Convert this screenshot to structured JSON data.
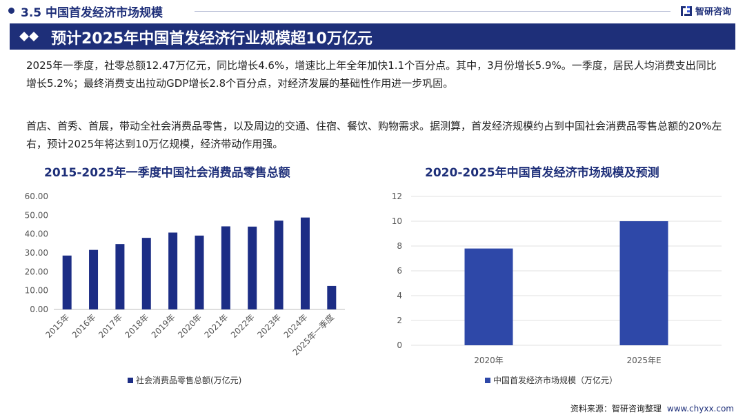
{
  "header": {
    "section_title": "3.5 中国首发经济市场规模",
    "brand_name": "智研咨询",
    "banner_title": "预计2025年中国首发经济行业规模超10万亿元"
  },
  "paragraphs": [
    "2025年一季度，社零总额12.47万亿元，同比增长4.6%，增速比上年全年加快1.1个百分点。其中，3月份增长5.9%。一季度，居民人均消费支出同比增长5.2%；最终消费支出拉动GDP增长2.8个百分点，对经济发展的基础性作用进一步巩固。",
    "首店、首秀、首展，带动全社会消费品零售，以及周边的交通、住宿、餐饮、购物需求。据测算，首发经济规模约占到中国社会消费品零售总额的20%左右，预计2025年将达到10万亿规模，经济带动作用强。"
  ],
  "colors": {
    "navy": "#1e2f79",
    "bar_left": "#1c2d85",
    "bar_right": "#2e48a8",
    "grid": "#e0e0e0"
  },
  "chart_data": [
    {
      "type": "bar",
      "title": "2015-2025年一季度中国社会消费品零售总额",
      "categories": [
        "2015年",
        "2016年",
        "2017年",
        "2018年",
        "2019年",
        "2020年",
        "2021年",
        "2022年",
        "2023年",
        "2024年",
        "2025年一季度"
      ],
      "series": [
        {
          "name": "社会消费品零售总额(万亿元)",
          "values": [
            28.6,
            31.6,
            34.7,
            38.0,
            40.8,
            39.2,
            44.1,
            43.97,
            47.15,
            48.79,
            12.47
          ]
        }
      ],
      "ylim": [
        0,
        60
      ],
      "yticks": [
        "0.00",
        "10.00",
        "20.00",
        "30.00",
        "40.00",
        "50.00",
        "60.00"
      ],
      "grid": false,
      "legend": "bottom"
    },
    {
      "type": "bar",
      "title": "2020-2025年中国首发经济市场规模及预测",
      "categories": [
        "2020年",
        "2025年E"
      ],
      "series": [
        {
          "name": "中国首发经济市场规模（万亿元）",
          "values": [
            7.8,
            10
          ]
        }
      ],
      "ylim": [
        0,
        12
      ],
      "yticks": [
        "0",
        "2",
        "4",
        "6",
        "8",
        "10",
        "12"
      ],
      "grid": true,
      "legend": "bottom"
    }
  ],
  "footer": {
    "label": "资料来源：",
    "source": "智研咨询整理",
    "url": "www.chyxx.com"
  }
}
